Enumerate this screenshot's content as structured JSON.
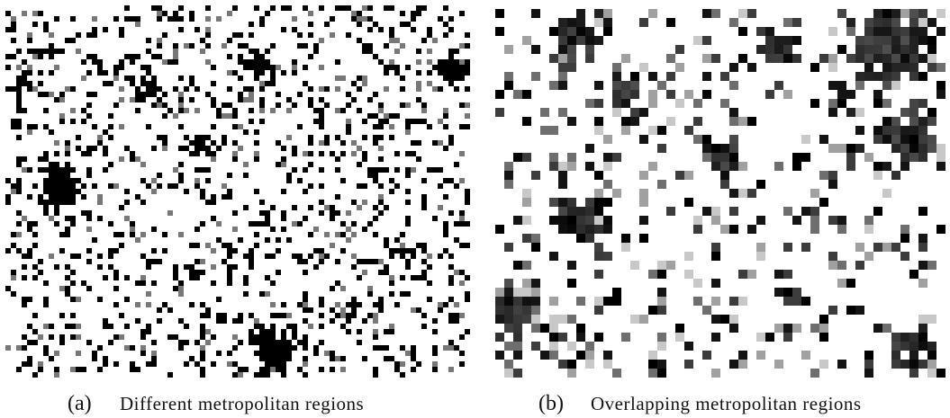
{
  "panels": [
    {
      "label": "(a)",
      "caption": "Different metropolitan regions"
    },
    {
      "label": "(b)",
      "caption": "Overlapping metropolitan regions"
    }
  ]
}
